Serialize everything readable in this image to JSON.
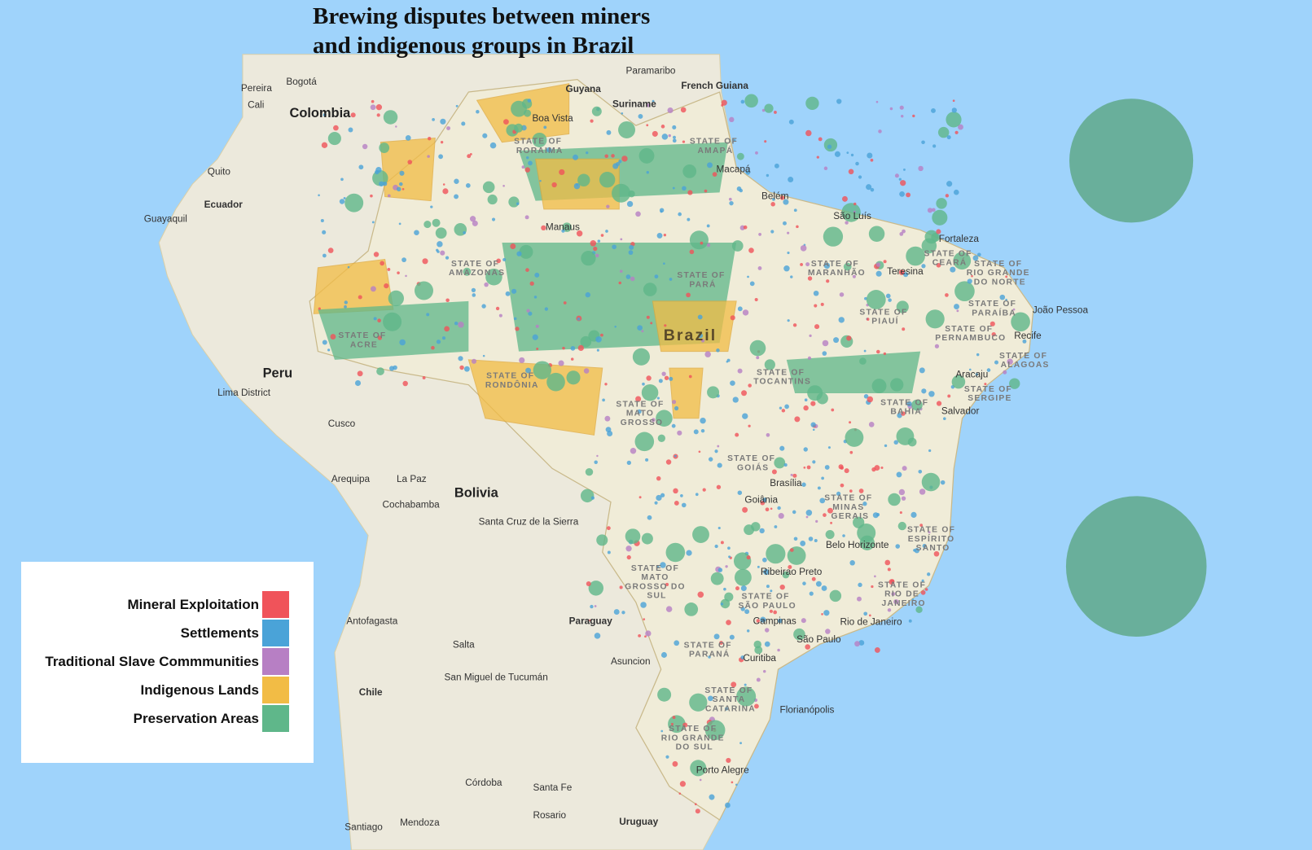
{
  "title": {
    "line1": "Brewing disputes between miners",
    "line2": "and indigenous groups in Brazil"
  },
  "colors": {
    "ocean": "#9fd3fb",
    "land": "#ece9dc",
    "mineral": "#f0535a",
    "settlements": "#4aa3d8",
    "slave_communities": "#b77fc4",
    "indigenous": "#f2bc45",
    "preservation": "#5fb78a"
  },
  "legend": {
    "items": [
      {
        "label": "Mineral Exploitation",
        "color": "#f0535a"
      },
      {
        "label": "Settlements",
        "color": "#4aa3d8"
      },
      {
        "label": "Traditional Slave Commmunities",
        "color": "#b77fc4"
      },
      {
        "label": "Indigenous Lands",
        "color": "#f2bc45"
      },
      {
        "label": "Preservation Areas",
        "color": "#5fb78a"
      }
    ]
  },
  "countries": [
    "Colombia",
    "Ecuador",
    "Peru",
    "Bolivia",
    "Paraguay",
    "Chile",
    "Uruguay",
    "Guyana",
    "Suriname",
    "French Guiana",
    "Brazil"
  ],
  "cities": [
    "Bogotá",
    "Pereira",
    "Cali",
    "Quito",
    "Guayaquil",
    "Lima District",
    "Cusco",
    "Arequipa",
    "La Paz",
    "Cochabamba",
    "Santa Cruz de la Sierra",
    "Asuncion",
    "Antofagasta",
    "Salta",
    "San Miguel de Tucumán",
    "Córdoba",
    "Santa Fe",
    "Rosario",
    "Santiago",
    "Mendoza",
    "Porto Alegre",
    "Florianópolis",
    "Curitiba",
    "São Paulo",
    "Campinas",
    "Rio de Janeiro",
    "Ribeirao Preto",
    "Belo Horizonte",
    "Goiânia",
    "Brasília",
    "Salvador",
    "Aracaju",
    "Recife",
    "João Pessoa",
    "Fortaleza",
    "Teresina",
    "São Luís",
    "Belém",
    "Macapá",
    "Manaus",
    "Boa Vista",
    "Paramaribo"
  ],
  "states": [
    "STATE OF RORAIMA",
    "STATE OF AMAPÁ",
    "STATE OF AMAZONAS",
    "STATE OF PARÁ",
    "STATE OF ACRE",
    "STATE OF RONDÔNIA",
    "STATE OF MATO GROSSO",
    "STATE OF TOCANTINS",
    "STATE OF MARANHÃO",
    "STATE OF PIAUÍ",
    "STATE OF CEARÁ",
    "STATE OF RIO GRANDE DO NORTE",
    "STATE OF PARAÍBA",
    "STATE OF PERNAMBUCO",
    "STATE OF ALAGOAS",
    "STATE OF SERGIPE",
    "STATE OF BAHIA",
    "STATE OF GOIÁS",
    "STATE OF MINAS GERAIS",
    "STATE OF ESPÍRITO SANTO",
    "STATE OF MATO GROSSO DO SUL",
    "STATE OF SÃO PAULO",
    "STATE OF RIO DE JANEIRO",
    "STATE OF PARANÁ",
    "STATE OF SANTA CATARINA",
    "STATE OF RIO GRANDE DO SUL"
  ]
}
